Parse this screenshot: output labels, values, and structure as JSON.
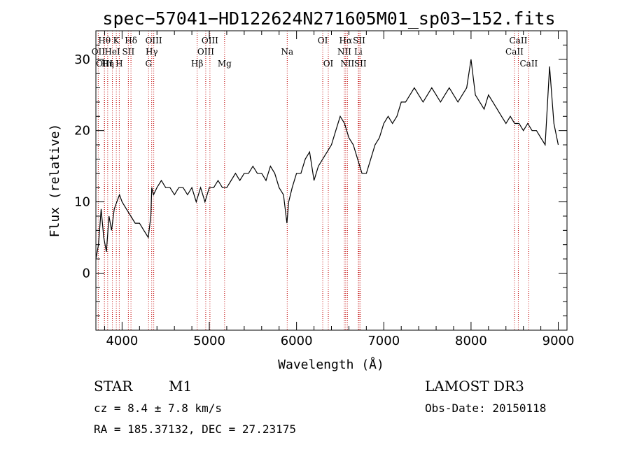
{
  "chart_data": {
    "type": "line",
    "title": "spec−57041−HD122624N271605M01_sp03−152.fits",
    "xlabel": "Wavelength (Å)",
    "ylabel": "Flux (relative)",
    "xlim": [
      3700,
      9100
    ],
    "ylim": [
      -8,
      34
    ],
    "x_ticks": [
      4000,
      5000,
      6000,
      7000,
      8000,
      9000
    ],
    "y_ticks": [
      0,
      10,
      20,
      30
    ],
    "series": [
      {
        "x": [
          3700,
          3730,
          3760,
          3790,
          3820,
          3850,
          3880,
          3910,
          3940,
          3970,
          4000,
          4050,
          4100,
          4150,
          4200,
          4250,
          4300,
          4330,
          4340,
          4360,
          4400,
          4450,
          4500,
          4550,
          4600,
          4650,
          4700,
          4750,
          4800,
          4850,
          4900,
          4950,
          5000,
          5050,
          5100,
          5150,
          5200,
          5250,
          5300,
          5350,
          5400,
          5450,
          5500,
          5550,
          5600,
          5650,
          5700,
          5750,
          5800,
          5850,
          5890,
          5910,
          5950,
          6000,
          6050,
          6100,
          6150,
          6200,
          6250,
          6300,
          6350,
          6400,
          6450,
          6500,
          6550,
          6600,
          6650,
          6700,
          6750,
          6800,
          6850,
          6900,
          6950,
          7000,
          7050,
          7100,
          7150,
          7200,
          7250,
          7300,
          7350,
          7400,
          7450,
          7500,
          7550,
          7600,
          7650,
          7700,
          7750,
          7800,
          7850,
          7900,
          7950,
          8000,
          8050,
          8100,
          8150,
          8200,
          8250,
          8300,
          8350,
          8400,
          8450,
          8500,
          8550,
          8600,
          8650,
          8700,
          8750,
          8800,
          8850,
          8900,
          8950,
          9000
        ],
        "y": [
          2,
          4,
          9,
          5,
          3,
          8,
          6,
          9,
          10,
          11,
          10,
          9,
          8,
          7,
          7,
          6,
          5,
          8,
          12,
          11,
          12,
          13,
          12,
          12,
          11,
          12,
          12,
          11,
          12,
          10,
          12,
          10,
          12,
          12,
          13,
          12,
          12,
          13,
          14,
          13,
          14,
          14,
          15,
          14,
          14,
          13,
          15,
          14,
          12,
          11,
          7,
          10,
          12,
          14,
          14,
          16,
          17,
          13,
          15,
          16,
          17,
          18,
          20,
          22,
          21,
          19,
          18,
          16,
          14,
          14,
          16,
          18,
          19,
          21,
          22,
          21,
          22,
          24,
          24,
          25,
          26,
          25,
          24,
          25,
          26,
          25,
          24,
          25,
          26,
          25,
          24,
          25,
          26,
          30,
          25,
          24,
          23,
          25,
          24,
          23,
          22,
          21,
          22,
          21,
          21,
          20,
          21,
          20,
          20,
          19,
          18,
          29,
          21,
          18
        ]
      }
    ],
    "line_labels": [
      {
        "label": "Hθ",
        "x": 3798,
        "row": 1
      },
      {
        "label": "K",
        "x": 3934,
        "row": 1
      },
      {
        "label": "Hδ",
        "x": 4102,
        "row": 1
      },
      {
        "label": "OIII",
        "x": 4363,
        "row": 1
      },
      {
        "label": "OIII",
        "x": 5007,
        "row": 1
      },
      {
        "label": "OI",
        "x": 6300,
        "row": 1
      },
      {
        "label": "Hα",
        "x": 6563,
        "row": 1
      },
      {
        "label": "SII",
        "x": 6717,
        "row": 1
      },
      {
        "label": "CaII",
        "x": 8542,
        "row": 1
      },
      {
        "label": "OII",
        "x": 3727,
        "row": 2
      },
      {
        "label": "HeI",
        "x": 3889,
        "row": 2
      },
      {
        "label": "SII",
        "x": 4072,
        "row": 2
      },
      {
        "label": "Hγ",
        "x": 4340,
        "row": 2
      },
      {
        "label": "OIII",
        "x": 4959,
        "row": 2
      },
      {
        "label": "Na",
        "x": 5893,
        "row": 2
      },
      {
        "label": "NII",
        "x": 6548,
        "row": 2
      },
      {
        "label": "Li",
        "x": 6708,
        "row": 2
      },
      {
        "label": "CaII",
        "x": 8498,
        "row": 2
      },
      {
        "label": "OIII",
        "x": 3798,
        "row": 3
      },
      {
        "label": "Hη",
        "x": 3835,
        "row": 3
      },
      {
        "label": "H",
        "x": 3968,
        "row": 3
      },
      {
        "label": "G",
        "x": 4304,
        "row": 3
      },
      {
        "label": "Hβ",
        "x": 4861,
        "row": 3
      },
      {
        "label": "Mg",
        "x": 5175,
        "row": 3
      },
      {
        "label": "OI",
        "x": 6364,
        "row": 3
      },
      {
        "label": "NII",
        "x": 6583,
        "row": 3
      },
      {
        "label": "SII",
        "x": 6731,
        "row": 3
      },
      {
        "label": "CaII",
        "x": 8662,
        "row": 3
      }
    ],
    "line_marker_color": "#c00000",
    "spectrum_color": "#000000"
  },
  "info": {
    "object_class": "STAR",
    "subclass": "M1",
    "survey": "LAMOST DR3",
    "cz": "cz = 8.4 ± 7.8 km/s",
    "obs_date": "Obs-Date: 20150118",
    "radec": "RA = 185.37132, DEC =  27.23175"
  }
}
